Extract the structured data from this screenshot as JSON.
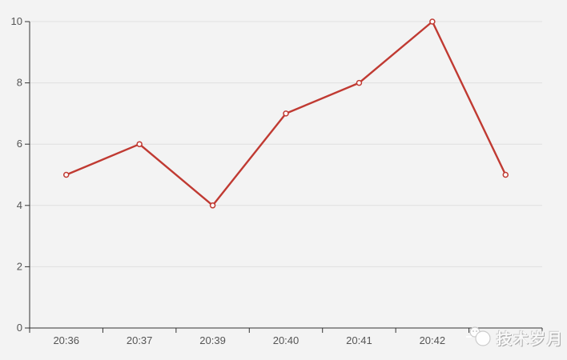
{
  "page": {
    "background": "#f3f3f3"
  },
  "watermark": {
    "text": "技术岁月",
    "logo_icon": "mascot-logo-icon"
  },
  "chart_data": {
    "type": "line",
    "title": "",
    "xlabel": "",
    "ylabel": "",
    "x": [
      "20:36",
      "20:37",
      "20:39",
      "20:40",
      "20:41",
      "20:42",
      ""
    ],
    "values": [
      5,
      6,
      4,
      7,
      8,
      10,
      5
    ],
    "ylim": [
      0,
      10
    ],
    "yticks": [
      0,
      2,
      4,
      6,
      8,
      10
    ],
    "grid": true,
    "legend_position": "none",
    "colors": {
      "line": "#c03a32",
      "marker_fill": "#ffffff",
      "axis": "#333333",
      "gridline": "#e0e0e0",
      "tick_label": "#555555"
    }
  }
}
